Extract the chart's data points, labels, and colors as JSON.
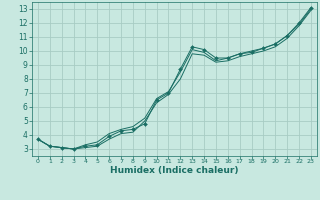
{
  "xlabel": "Humidex (Indice chaleur)",
  "background_color": "#c8e8e0",
  "grid_color": "#a8ccc4",
  "line_color": "#1a6e64",
  "xlim": [
    -0.5,
    23.5
  ],
  "ylim": [
    2.5,
    13.5
  ],
  "xticks": [
    0,
    1,
    2,
    3,
    4,
    5,
    6,
    7,
    8,
    9,
    10,
    11,
    12,
    13,
    14,
    15,
    16,
    17,
    18,
    19,
    20,
    21,
    22,
    23
  ],
  "yticks": [
    3,
    4,
    5,
    6,
    7,
    8,
    9,
    10,
    11,
    12,
    13
  ],
  "series1_x": [
    0,
    1,
    2,
    3,
    4,
    5,
    6,
    7,
    8,
    9,
    10,
    11,
    12,
    13,
    14,
    15,
    16,
    17,
    18,
    19,
    20,
    21,
    22,
    23
  ],
  "series1_y": [
    3.7,
    3.2,
    3.1,
    3.0,
    3.2,
    3.3,
    3.9,
    4.3,
    4.4,
    4.8,
    6.5,
    7.0,
    8.7,
    10.3,
    10.1,
    9.5,
    9.5,
    9.8,
    9.9,
    10.2,
    10.5,
    11.1,
    12.0,
    13.1
  ],
  "series2_x": [
    0,
    1,
    2,
    3,
    4,
    5,
    6,
    7,
    8,
    9,
    10,
    11,
    12,
    13,
    14,
    15,
    16,
    17,
    18,
    19,
    20,
    21,
    22,
    23
  ],
  "series2_y": [
    3.7,
    3.2,
    3.1,
    3.0,
    3.1,
    3.2,
    3.7,
    4.1,
    4.2,
    5.0,
    6.3,
    6.9,
    8.0,
    9.8,
    9.7,
    9.2,
    9.3,
    9.6,
    9.8,
    10.0,
    10.3,
    10.9,
    11.8,
    12.9
  ],
  "series3_x": [
    0,
    1,
    2,
    3,
    4,
    5,
    6,
    7,
    8,
    9,
    10,
    11,
    12,
    13,
    14,
    15,
    16,
    17,
    18,
    19,
    20,
    21,
    22,
    23
  ],
  "series3_y": [
    3.7,
    3.2,
    3.1,
    3.0,
    3.3,
    3.5,
    4.1,
    4.4,
    4.6,
    5.2,
    6.6,
    7.1,
    8.5,
    10.1,
    9.9,
    9.3,
    9.5,
    9.8,
    10.0,
    10.2,
    10.5,
    11.1,
    11.9,
    13.0
  ]
}
